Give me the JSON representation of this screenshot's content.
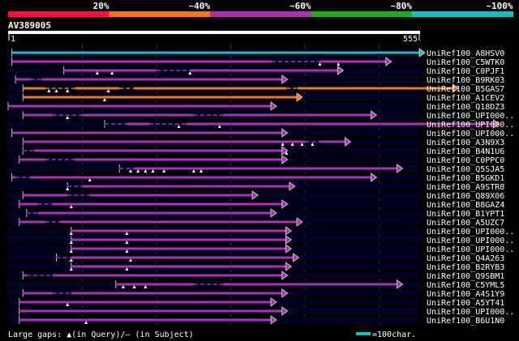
{
  "chart_data": {
    "type": "alignment-overview",
    "title": "",
    "query_id": "AV389005",
    "query_range": [
      1,
      555
    ],
    "identity_scale": {
      "labels": [
        "20%",
        "~40%",
        "~60%",
        "~80%",
        "~100%"
      ],
      "colors": [
        "#ee1144",
        "#ee7722",
        "#aa33aa",
        "#22aa22",
        "#22bbbb"
      ]
    },
    "legend": {
      "gaps_text": "Large gaps: ▲(in Query)/– (in Subject)",
      "scale_text": "=100char.",
      "scale_length": 100,
      "scale_color": "#22bbbb"
    },
    "hits": [
      {
        "id": "UniRef100_A8HSV0",
        "start": 5,
        "end": 555,
        "identity": "~100%",
        "color": "#22bbbb",
        "gaps_subject": [],
        "gaps_query": []
      },
      {
        "id": "UniRef100_C5WTK0",
        "start": 5,
        "end": 510,
        "identity": "~60%",
        "color": "#aa33aa",
        "gaps_subject": [
          [
            355,
            420
          ]
        ],
        "gaps_query": [
          420,
          445
        ]
      },
      {
        "id": "UniRef100_C0PJF1",
        "start": 75,
        "end": 445,
        "identity": "~60%",
        "color": "#aa33aa",
        "gaps_subject": [
          [
            200,
            245
          ]
        ],
        "gaps_query": [
          120,
          140,
          245
        ]
      },
      {
        "id": "UniRef100_B9RK03",
        "start": 10,
        "end": 370,
        "identity": "~60%",
        "color": "#aa33aa",
        "gaps_subject": [
          [
            30,
            45
          ]
        ],
        "gaps_query": []
      },
      {
        "id": "UniRef100_B5GAS7",
        "start": 20,
        "end": 600,
        "identity": "~40%",
        "color": "#ee7722",
        "gaps_subject": [
          [
            50,
            90
          ],
          [
            150,
            170
          ],
          [
            375,
            390
          ]
        ],
        "gaps_query": [
          55,
          65,
          80,
          135
        ]
      },
      {
        "id": "UniRef100_A1CEV2",
        "start": 20,
        "end": 390,
        "identity": "~40%",
        "color": "#ee7722",
        "gaps_subject": [],
        "gaps_query": [
          130
        ]
      },
      {
        "id": "UniRef100_Q18DZ3",
        "start": 0,
        "end": 355,
        "identity": "~60%",
        "color": "#aa33aa",
        "gaps_subject": [],
        "gaps_query": []
      },
      {
        "id": "UniRef100_UPI000..",
        "start": 20,
        "end": 490,
        "identity": "~60%",
        "color": "#aa33aa",
        "gaps_subject": [
          [
            60,
            100
          ],
          [
            250,
            290
          ]
        ],
        "gaps_query": [
          80
        ]
      },
      {
        "id": "UniRef100_UPI000..",
        "start": 130,
        "end": 655,
        "identity": "~60%",
        "color": "#aa33aa",
        "gaps_subject": [
          [
            130,
            160
          ],
          [
            190,
            240
          ]
        ],
        "gaps_query": [
          230,
          285
        ]
      },
      {
        "id": "UniRef100_UPI000..",
        "start": 5,
        "end": 370,
        "identity": "~60%",
        "color": "#aa33aa",
        "gaps_subject": [],
        "gaps_query": []
      },
      {
        "id": "UniRef100_A3N9X3",
        "start": 20,
        "end": 455,
        "identity": "~60%",
        "color": "#aa33aa",
        "gaps_subject": [
          [
            400,
            420
          ]
        ],
        "gaps_query": [
          370,
          383,
          396,
          410
        ]
      },
      {
        "id": "UniRef100_B4N1U6",
        "start": 20,
        "end": 370,
        "identity": "~60%",
        "color": "#aa33aa",
        "gaps_subject": [
          [
            20,
            35
          ]
        ],
        "gaps_query": [
          375
        ]
      },
      {
        "id": "UniRef100_C0PPC0",
        "start": 15,
        "end": 370,
        "identity": "~60%",
        "color": "#aa33aa",
        "gaps_subject": [
          [
            50,
            90
          ]
        ],
        "gaps_query": []
      },
      {
        "id": "UniRef100_Q5SJA5",
        "start": 150,
        "end": 525,
        "identity": "~60%",
        "color": "#aa33aa",
        "gaps_subject": [
          [
            150,
            170
          ]
        ],
        "gaps_query": [
          165,
          175,
          185,
          195,
          210,
          250,
          260
        ]
      },
      {
        "id": "UniRef100_B5GKD1",
        "start": 5,
        "end": 490,
        "identity": "~60%",
        "color": "#aa33aa",
        "gaps_subject": [
          [
            10,
            30
          ]
        ],
        "gaps_query": [
          110
        ]
      },
      {
        "id": "UniRef100_A9STR8",
        "start": 80,
        "end": 380,
        "identity": "~60%",
        "color": "#aa33aa",
        "gaps_subject": [
          [
            80,
            100
          ]
        ],
        "gaps_query": [
          80
        ]
      },
      {
        "id": "UniRef100_Q89X06",
        "start": 20,
        "end": 330,
        "identity": "~60%",
        "color": "#aa33aa",
        "gaps_subject": [
          [
            80,
            110
          ]
        ],
        "gaps_query": []
      },
      {
        "id": "UniRef100_B8GAZ4",
        "start": 15,
        "end": 370,
        "identity": "~60%",
        "color": "#aa33aa",
        "gaps_subject": [
          [
            40,
            60
          ]
        ],
        "gaps_query": [
          85
        ]
      },
      {
        "id": "UniRef100_B1YPT1",
        "start": 25,
        "end": 355,
        "identity": "~60%",
        "color": "#aa33aa",
        "gaps_subject": [
          [
            25,
            40
          ]
        ],
        "gaps_query": []
      },
      {
        "id": "UniRef100_A5UZC7",
        "start": 15,
        "end": 390,
        "identity": "~60%",
        "color": "#aa33aa",
        "gaps_subject": [
          [
            50,
            70
          ]
        ],
        "gaps_query": []
      },
      {
        "id": "UniRef100_UPI000..",
        "start": 85,
        "end": 375,
        "identity": "~60%",
        "color": "#aa33aa",
        "gaps_subject": [],
        "gaps_query": [
          85,
          160
        ]
      },
      {
        "id": "UniRef100_UPI000..",
        "start": 85,
        "end": 375,
        "identity": "~60%",
        "color": "#aa33aa",
        "gaps_subject": [],
        "gaps_query": [
          85,
          160
        ]
      },
      {
        "id": "UniRef100_UPI000..",
        "start": 85,
        "end": 375,
        "identity": "~60%",
        "color": "#aa33aa",
        "gaps_subject": [],
        "gaps_query": [
          85,
          160
        ]
      },
      {
        "id": "UniRef100_Q4A263",
        "start": 65,
        "end": 385,
        "identity": "~60%",
        "color": "#aa33aa",
        "gaps_subject": [
          [
            65,
            85
          ]
        ],
        "gaps_query": [
          85,
          165
        ]
      },
      {
        "id": "UniRef100_B2RYB3",
        "start": 85,
        "end": 375,
        "identity": "~60%",
        "color": "#aa33aa",
        "gaps_subject": [],
        "gaps_query": [
          85,
          160
        ]
      },
      {
        "id": "UniRef100_Q9SBM1",
        "start": 20,
        "end": 370,
        "identity": "~60%",
        "color": "#aa33aa",
        "gaps_subject": [
          [
            25,
            60
          ]
        ],
        "gaps_query": []
      },
      {
        "id": "UniRef100_C5YML5",
        "start": 145,
        "end": 525,
        "identity": "~60%",
        "color": "#aa33aa",
        "gaps_subject": [
          [
            250,
            290
          ]
        ],
        "gaps_query": [
          155,
          170,
          185
        ]
      },
      {
        "id": "UniRef100_A4S1Y9",
        "start": 20,
        "end": 370,
        "identity": "~60%",
        "color": "#aa33aa",
        "gaps_subject": [
          [
            60,
            85
          ]
        ],
        "gaps_query": []
      },
      {
        "id": "UniRef100_A5YT41",
        "start": 15,
        "end": 355,
        "identity": "~60%",
        "color": "#aa33aa",
        "gaps_subject": [],
        "gaps_query": [
          80
        ]
      },
      {
        "id": "UniRef100_UPI000..",
        "start": 15,
        "end": 370,
        "identity": "~60%",
        "color": "#aa33aa",
        "gaps_subject": [],
        "gaps_query": []
      },
      {
        "id": "UniRef100_B6U1N0",
        "start": 15,
        "end": 355,
        "identity": "~60%",
        "color": "#aa33aa",
        "gaps_subject": [],
        "gaps_query": [
          105
        ]
      }
    ]
  }
}
